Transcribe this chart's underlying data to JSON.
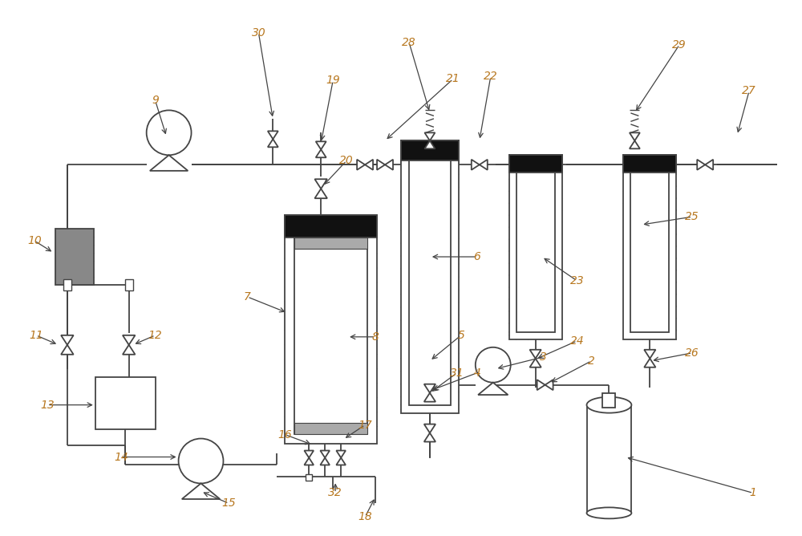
{
  "bg_color": "#ffffff",
  "line_color": "#444444",
  "label_color": "#b87820",
  "figsize": [
    10.0,
    6.68
  ],
  "dpi": 100
}
